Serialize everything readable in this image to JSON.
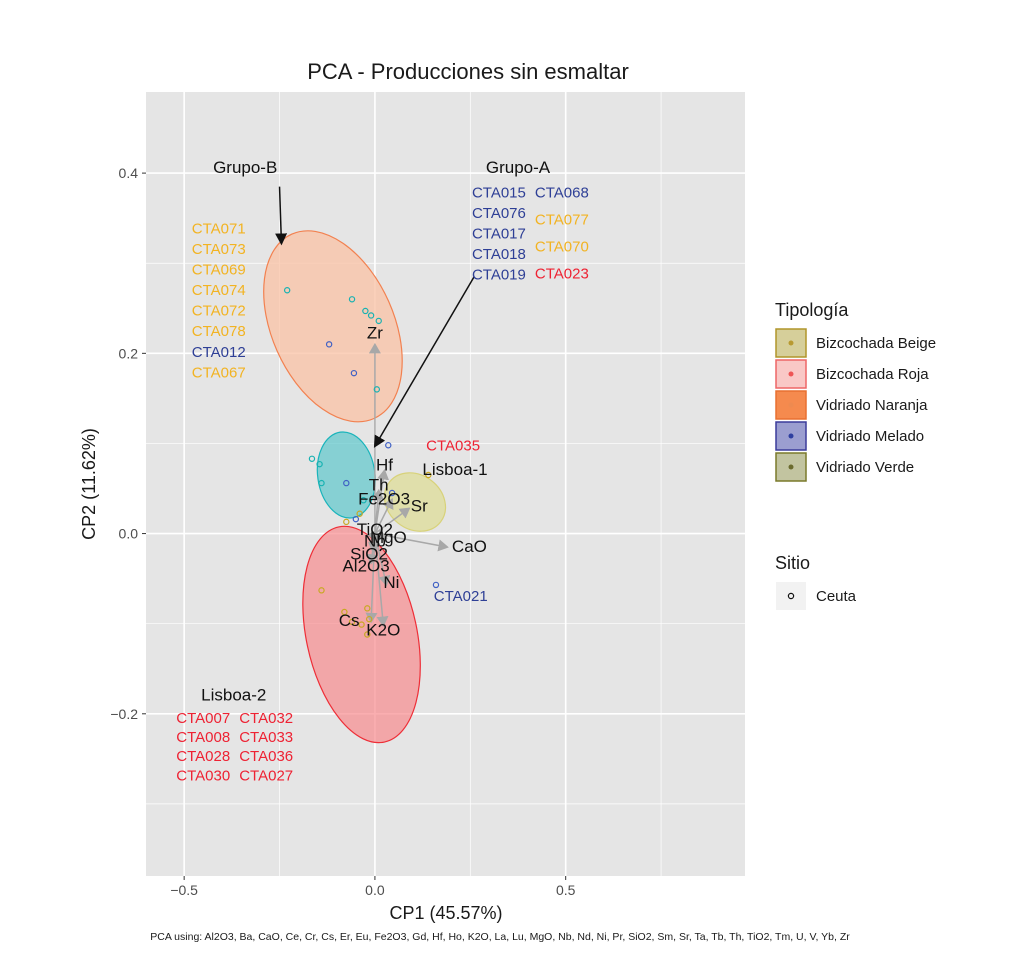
{
  "chart_data": {
    "type": "scatter",
    "title": "PCA - Producciones sin esmaltar",
    "xlabel": "CP1 (45.57%)",
    "ylabel": "CP2 (11.62%)",
    "caption": "PCA using: Al2O3, Ba, CaO, Ce, Cr, Cs, Er, Eu, Fe2O3, Gd, Hf, Ho, K2O, La, Lu, MgO, Nb, Nd, Ni, Pr, SiO2, Sm, Sr, Ta, Tb, Th, TiO2, Tm, U, V, Yb, Zr",
    "xlim": [
      -0.6,
      0.97
    ],
    "ylim": [
      -0.38,
      0.49
    ],
    "x_ticks": [
      -0.5,
      0.0,
      0.5
    ],
    "x_tick_labels": [
      "−0.5",
      "0.0",
      "0.5"
    ],
    "y_ticks": [
      -0.2,
      0.0,
      0.2,
      0.4
    ],
    "y_tick_labels": [
      "−0.2",
      "0.0",
      "0.2",
      "0.4"
    ],
    "grid": true,
    "colors": {
      "panel": "#e5e5e5",
      "grid": "#ffffff",
      "beige": "#c8a822",
      "roja": "#ee3d4d",
      "naranja": "#f3894a",
      "melado": "#3f60c4",
      "verde": "#18b2b2",
      "label_yellow": "#f2b322",
      "label_blue": "#2e3f96",
      "label_red": "#ee2233",
      "arrow": "#a8a8a8"
    },
    "legend": {
      "title": "Tipología",
      "position": "right",
      "items": [
        {
          "label": "Bizcochada Beige",
          "fill": "#d6cf9a",
          "border": "#b0952a",
          "dot": "#b89a30"
        },
        {
          "label": "Bizcochada Roja",
          "fill": "#f9c8c6",
          "border": "#ee6666",
          "dot": "#ee5555"
        },
        {
          "label": "Vidriado Naranja",
          "fill": "#f58a4e",
          "border": "#e87030",
          "dot": "#ee8a50"
        },
        {
          "label": "Vidriado Melado",
          "fill": "#9b9ed0",
          "border": "#3b3b9a",
          "dot": "#2e3fa0"
        },
        {
          "label": "Vidriado Verde",
          "fill": "#c2c4a0",
          "border": "#7a7a2a",
          "dot": "#6b6b2e"
        }
      ],
      "shape_title": "Sitio",
      "shape_items": [
        {
          "label": "Ceuta"
        }
      ]
    },
    "ellipses": [
      {
        "name": "Grupo-B",
        "cx": -0.11,
        "cy": 0.23,
        "rx": 0.16,
        "ry": 0.112,
        "angle": -24,
        "fill": "#f9c2a4",
        "stroke": "#f28150",
        "opacity": 0.75
      },
      {
        "name": "Grupo-A",
        "cx": -0.075,
        "cy": 0.065,
        "rx": 0.075,
        "ry": 0.048,
        "angle": -8,
        "fill": "#5ec8cc",
        "stroke": "#1ab4bb",
        "opacity": 0.7
      },
      {
        "name": "Lisboa-1",
        "cx": 0.105,
        "cy": 0.035,
        "rx": 0.085,
        "ry": 0.03,
        "angle": 38,
        "fill": "#dedc97",
        "stroke": "#d8d27a",
        "opacity": 0.75
      },
      {
        "name": "Lisboa-2",
        "cx": -0.035,
        "cy": -0.112,
        "rx": 0.145,
        "ry": 0.122,
        "angle": -12,
        "fill": "#f88c8e",
        "stroke": "#ee2e37",
        "opacity": 0.7
      }
    ],
    "points": [
      {
        "x": -0.23,
        "y": 0.27,
        "group": "verde"
      },
      {
        "x": -0.06,
        "y": 0.26,
        "group": "verde"
      },
      {
        "x": -0.025,
        "y": 0.247,
        "group": "verde"
      },
      {
        "x": -0.01,
        "y": 0.242,
        "group": "verde"
      },
      {
        "x": 0.01,
        "y": 0.236,
        "group": "verde"
      },
      {
        "x": -0.12,
        "y": 0.21,
        "group": "melado"
      },
      {
        "x": -0.055,
        "y": 0.178,
        "group": "melado"
      },
      {
        "x": 0.005,
        "y": 0.16,
        "group": "verde"
      },
      {
        "x": -0.165,
        "y": 0.083,
        "group": "verde"
      },
      {
        "x": -0.145,
        "y": 0.077,
        "group": "verde"
      },
      {
        "x": -0.14,
        "y": 0.056,
        "group": "verde"
      },
      {
        "x": -0.075,
        "y": 0.056,
        "group": "melado"
      },
      {
        "x": 0.035,
        "y": 0.098,
        "group": "melado"
      },
      {
        "x": 0.045,
        "y": 0.045,
        "group": "melado"
      },
      {
        "x": -0.03,
        "y": 0.037,
        "group": "verde"
      },
      {
        "x": -0.05,
        "y": 0.016,
        "group": "melado"
      },
      {
        "x": -0.075,
        "y": 0.013,
        "group": "beige"
      },
      {
        "x": -0.04,
        "y": 0.022,
        "group": "beige"
      },
      {
        "x": 0.14,
        "y": 0.065,
        "group": "beige"
      },
      {
        "x": 0.16,
        "y": -0.057,
        "group": "melado"
      },
      {
        "x": -0.14,
        "y": -0.063,
        "group": "beige"
      },
      {
        "x": -0.08,
        "y": -0.087,
        "group": "beige"
      },
      {
        "x": -0.02,
        "y": -0.083,
        "group": "beige"
      },
      {
        "x": -0.06,
        "y": -0.098,
        "group": "beige"
      },
      {
        "x": -0.035,
        "y": -0.101,
        "group": "beige"
      },
      {
        "x": -0.015,
        "y": -0.095,
        "group": "beige"
      },
      {
        "x": -0.02,
        "y": -0.112,
        "group": "beige"
      }
    ],
    "loadings": [
      {
        "label": "Zr",
        "x": 0.0,
        "y": 0.21
      },
      {
        "label": "Hf",
        "x": 0.025,
        "y": 0.07
      },
      {
        "label": "Th",
        "x": 0.01,
        "y": 0.048
      },
      {
        "label": "Fe2O3",
        "x": 0.045,
        "y": 0.038
      },
      {
        "label": "Sr",
        "x": 0.09,
        "y": 0.028
      },
      {
        "label": "CaO",
        "x": 0.19,
        "y": -0.015
      },
      {
        "label": "Ni",
        "x": 0.03,
        "y": -0.057
      },
      {
        "label": "Cs",
        "x": -0.01,
        "y": -0.098
      },
      {
        "label": "K2O",
        "x": 0.022,
        "y": -0.102
      },
      {
        "label": "Al2O3",
        "x": -0.01,
        "y": -0.033
      },
      {
        "label": "TiO2",
        "x": 0.005,
        "y": 0.003
      },
      {
        "label": "MgO",
        "x": 0.03,
        "y": -0.005
      },
      {
        "label": "SiO2",
        "x": -0.005,
        "y": -0.02
      },
      {
        "label": "Nb",
        "x": 0.0,
        "y": -0.01
      }
    ],
    "group_annotations": [
      {
        "title": "Grupo-B",
        "arrow_from": [
          -0.25,
          0.385
        ],
        "arrow_to": [
          -0.245,
          0.322
        ],
        "title_at": [
          -0.34,
          0.4
        ],
        "title_anchor": "middle",
        "columns": [
          {
            "x": -0.48,
            "anchor": "start",
            "items": [
              {
                "text": "CTA071",
                "color": "yellow"
              },
              {
                "text": "CTA073",
                "color": "yellow"
              },
              {
                "text": "CTA069",
                "color": "yellow"
              },
              {
                "text": "CTA074",
                "color": "yellow"
              },
              {
                "text": "CTA072",
                "color": "yellow"
              },
              {
                "text": "CTA078",
                "color": "yellow"
              },
              {
                "text": "CTA012",
                "color": "blue"
              },
              {
                "text": "CTA067",
                "color": "yellow"
              }
            ],
            "y_start": 0.333,
            "dy": -0.0228
          }
        ]
      },
      {
        "title": "Grupo-A",
        "arrow_from": [
          0.26,
          0.285
        ],
        "arrow_to": [
          0.0,
          0.097
        ],
        "title_at": [
          0.375,
          0.4
        ],
        "title_anchor": "middle",
        "columns": [
          {
            "x": 0.325,
            "anchor": "middle",
            "items": [
              {
                "text": "CTA015",
                "color": "blue"
              },
              {
                "text": "CTA076",
                "color": "blue"
              },
              {
                "text": "CTA017",
                "color": "blue"
              },
              {
                "text": "CTA018",
                "color": "blue"
              },
              {
                "text": "CTA019",
                "color": "blue"
              }
            ],
            "y_start": 0.373,
            "dy": -0.0228
          },
          {
            "x": 0.49,
            "anchor": "middle",
            "items": [
              {
                "text": "CTA068",
                "color": "blue"
              },
              {
                "text": "CTA077",
                "color": "yellow"
              },
              {
                "text": "CTA070",
                "color": "yellow"
              },
              {
                "text": "CTA023",
                "color": "red"
              }
            ],
            "y_start": 0.373,
            "dy": -0.03
          }
        ]
      },
      {
        "title": "Lisboa-2",
        "title_at": [
          -0.37,
          -0.185
        ],
        "title_anchor": "middle",
        "columns": [
          {
            "x": -0.45,
            "anchor": "middle",
            "items": [
              {
                "text": "CTA007",
                "color": "red"
              },
              {
                "text": "CTA008",
                "color": "red"
              },
              {
                "text": "CTA028",
                "color": "red"
              },
              {
                "text": "CTA030",
                "color": "red"
              }
            ],
            "y_start": -0.21,
            "dy": -0.0213
          },
          {
            "x": -0.285,
            "anchor": "middle",
            "items": [
              {
                "text": "CTA032",
                "color": "red"
              },
              {
                "text": "CTA033",
                "color": "red"
              },
              {
                "text": "CTA036",
                "color": "red"
              },
              {
                "text": "CTA027",
                "color": "red"
              }
            ],
            "y_start": -0.21,
            "dy": -0.0213
          }
        ]
      }
    ],
    "single_labels": [
      {
        "text": "Lisboa-1",
        "x": 0.21,
        "y": 0.065,
        "color": "black",
        "size": 17
      },
      {
        "text": "CTA035",
        "x": 0.205,
        "y": 0.092,
        "color": "red",
        "size": 15
      },
      {
        "text": "CTA021",
        "x": 0.225,
        "y": -0.075,
        "color": "blue",
        "size": 15
      }
    ]
  }
}
